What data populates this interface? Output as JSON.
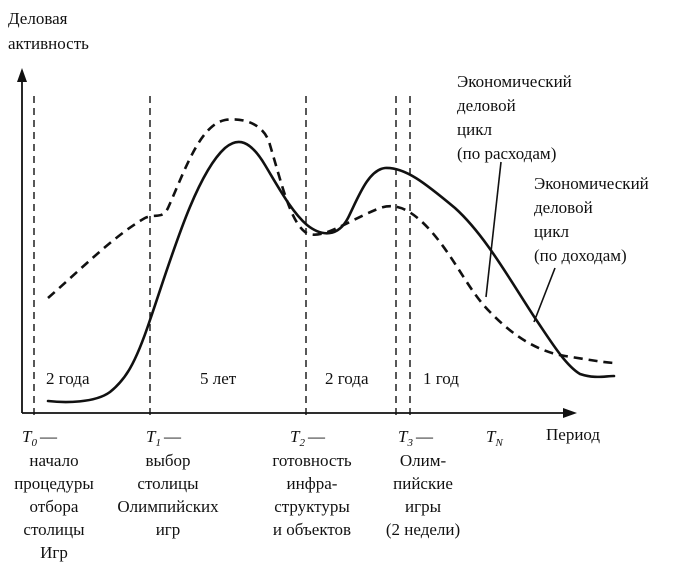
{
  "y_axis_label": [
    "Деловая",
    "активность"
  ],
  "x_axis_label": "Период",
  "series": [
    {
      "name": [
        "Экономический",
        "деловой",
        "цикл",
        "(по расходам)"
      ],
      "style": "dashed"
    },
    {
      "name": [
        "Экономический",
        "деловой",
        "цикл",
        "(по доходам)"
      ],
      "style": "solid"
    }
  ],
  "intervals": [
    "2 года",
    "5 лет",
    "2 года",
    "1 год"
  ],
  "milestones": [
    {
      "symbol": "T",
      "sub": "0",
      "dash": "—",
      "desc": [
        "начало",
        "процедуры",
        "отбора",
        "столицы",
        "Игр"
      ]
    },
    {
      "symbol": "T",
      "sub": "1",
      "dash": "—",
      "desc": [
        "выбор",
        "столицы",
        "Олимпийских",
        "игр"
      ]
    },
    {
      "symbol": "T",
      "sub": "2",
      "dash": "—",
      "desc": [
        "готовность",
        "инфра-",
        "структуры",
        "и объектов"
      ]
    },
    {
      "symbol": "T",
      "sub": "3",
      "dash": "—",
      "desc": [
        "Олим-",
        "пийские",
        "игры",
        "(2 недели)"
      ]
    },
    {
      "symbol": "T",
      "sub": "N",
      "dash": "",
      "desc": []
    }
  ]
}
